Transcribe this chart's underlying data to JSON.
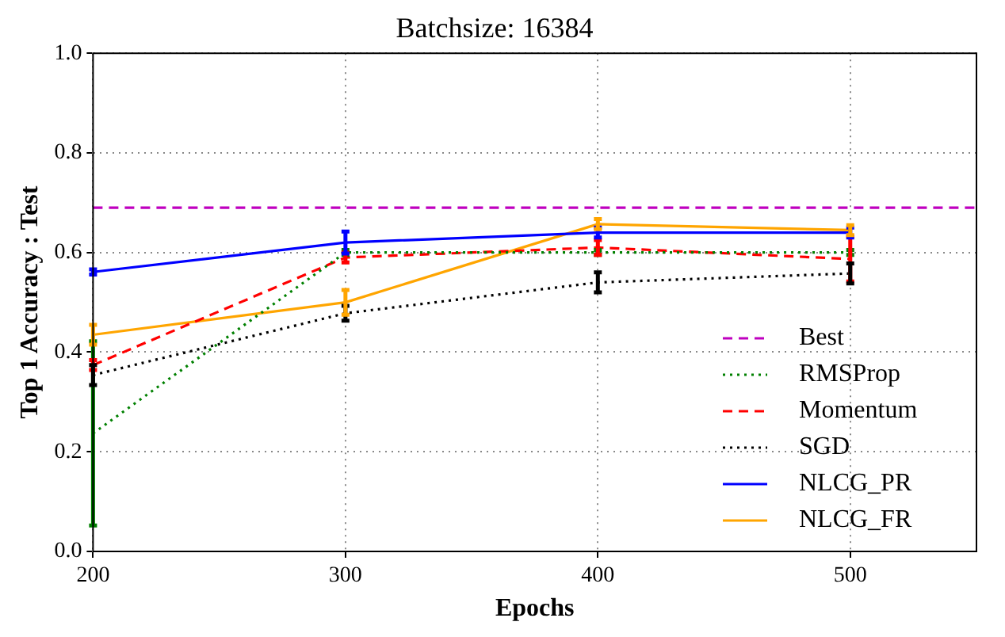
{
  "chart_data": {
    "type": "line",
    "title": "Batchsize: 16384",
    "xlabel": "Epochs",
    "ylabel": "Top 1 Accuracy : Test",
    "x": [
      200,
      300,
      400,
      500
    ],
    "xlim": [
      200,
      550
    ],
    "xticks": [
      200,
      300,
      400,
      500
    ],
    "ylim": [
      0,
      1
    ],
    "yticks": [
      {
        "value": 0,
        "label": "0.0"
      },
      {
        "value": 0.2,
        "label": "0.2"
      },
      {
        "value": 0.4,
        "label": "0.4"
      },
      {
        "value": 0.6,
        "label": "0.6"
      },
      {
        "value": 0.8,
        "label": "0.8"
      },
      {
        "value": 1,
        "label": "1.0"
      }
    ],
    "grid": true,
    "legend": "bottom right",
    "series": [
      {
        "name": "Best",
        "color": "#bf00bf",
        "line_style": "dashed",
        "x": [
          200,
          550
        ],
        "values": [
          0.69,
          0.69
        ]
      },
      {
        "name": "RMSProp",
        "color": "#008000",
        "line_style": "dotted",
        "values": [
          0.237,
          0.6,
          0.6,
          0.6
        ],
        "errors": [
          0.185,
          0.005,
          0.005,
          0.005
        ]
      },
      {
        "name": "Momentum",
        "color": "#ff0000",
        "line_style": "dashed",
        "values": [
          0.374,
          0.59,
          0.61,
          0.587
        ],
        "errors": [
          0.01,
          0.01,
          0.015,
          0.045
        ]
      },
      {
        "name": "SGD",
        "color": "#000000",
        "line_style": "dotted",
        "values": [
          0.354,
          0.478,
          0.54,
          0.558
        ],
        "errors": [
          0.02,
          0.015,
          0.02,
          0.02
        ]
      },
      {
        "name": "NLCG_PR",
        "color": "#0000ff",
        "line_style": "solid",
        "values": [
          0.561,
          0.62,
          0.64,
          0.64
        ],
        "errors": [
          0.005,
          0.022,
          0.01,
          0.01
        ]
      },
      {
        "name": "NLCG_FR",
        "color": "#ffa500",
        "line_style": "solid",
        "values": [
          0.435,
          0.5,
          0.657,
          0.645
        ],
        "errors": [
          0.02,
          0.025,
          0.01,
          0.01
        ]
      }
    ]
  }
}
